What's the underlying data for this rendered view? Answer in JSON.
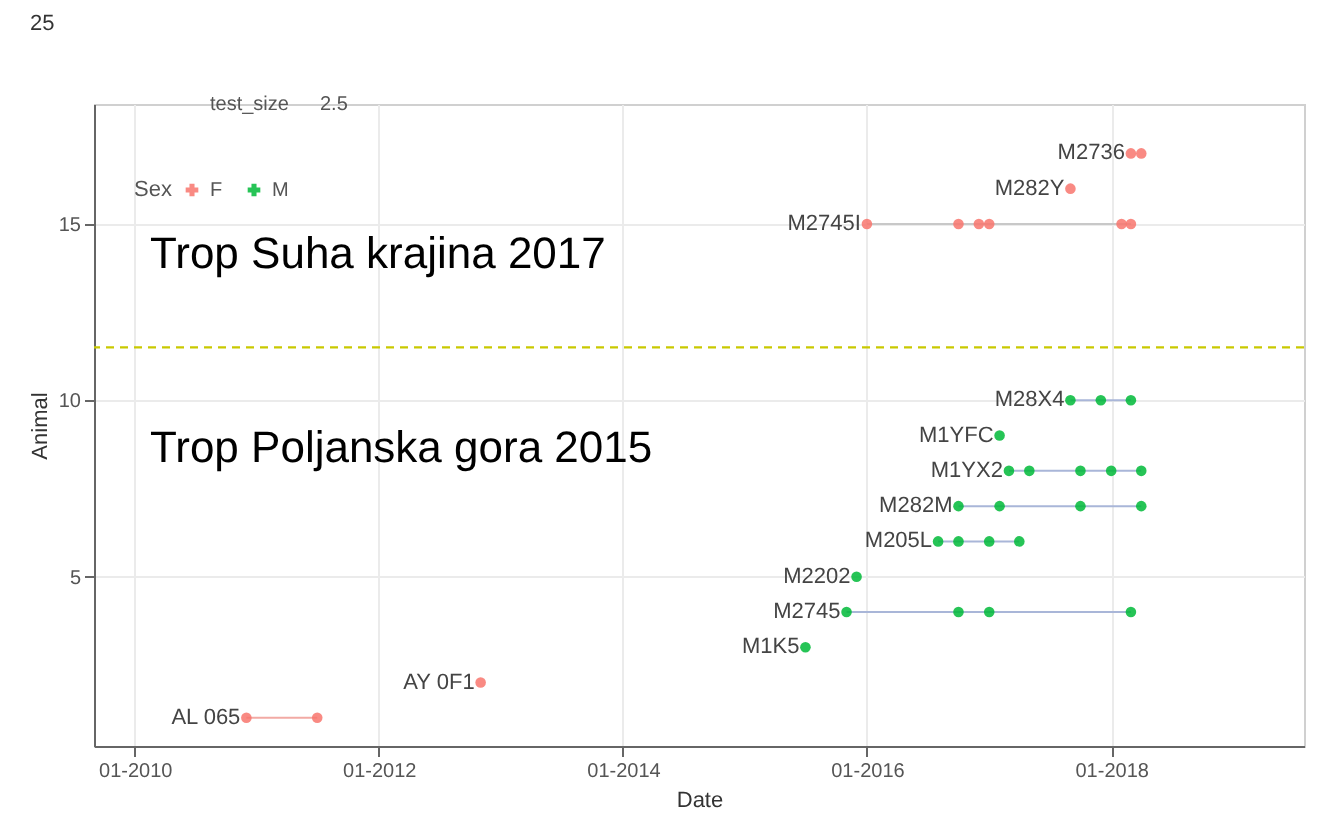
{
  "chart_data": {
    "type": "line",
    "xlabel": "Date",
    "ylabel": "Animal",
    "legend_title": "Sex",
    "legend": "top left",
    "grid": true,
    "xlim": [
      "2009-09",
      "2019-08"
    ],
    "xticks": [
      {
        "value": "2010-01",
        "label": "01-2010"
      },
      {
        "value": "2012-01",
        "label": "01-2012"
      },
      {
        "value": "2014-01",
        "label": "01-2014"
      },
      {
        "value": "2016-01",
        "label": "01-2016"
      },
      {
        "value": "2018-01",
        "label": "01-2018"
      }
    ],
    "ylim": [
      0.2,
      18.4
    ],
    "yticks": [
      5,
      10,
      15
    ],
    "ref_lines": [
      {
        "axis": "y",
        "value": 11.5,
        "color": "#c9c900",
        "line_style": "dashed"
      }
    ],
    "series": [
      {
        "type": "line",
        "color": "#f2aaa4",
        "x": [
          "2010-12",
          "2011-07"
        ],
        "values": [
          1,
          1
        ]
      },
      {
        "type": "line",
        "color": "#a9b6d8",
        "x": [
          "2015-11",
          "2016-10",
          "2017-01",
          "2018-03"
        ],
        "values": [
          4,
          4,
          4,
          4
        ]
      },
      {
        "type": "line",
        "color": "#a9b6d8",
        "x": [
          "2016-08",
          "2016-10",
          "2017-01",
          "2017-04"
        ],
        "values": [
          6,
          6,
          6,
          6
        ]
      },
      {
        "type": "line",
        "color": "#a9b6d8",
        "x": [
          "2016-10",
          "2017-02",
          "2017-10",
          "2018-04"
        ],
        "values": [
          7,
          7,
          7,
          7
        ]
      },
      {
        "type": "line",
        "color": "#a9b6d8",
        "x": [
          "2017-03",
          "2017-05",
          "2017-10",
          "2018-01",
          "2018-04"
        ],
        "values": [
          8,
          8,
          8,
          8,
          8
        ]
      },
      {
        "type": "line",
        "color": "#a9b6d8",
        "x": [
          "2017-09",
          "2017-12",
          "2018-03"
        ],
        "values": [
          10,
          10,
          10
        ]
      },
      {
        "type": "line",
        "color": "#c8c8c8",
        "x": [
          "2016-01",
          "2016-10",
          "2016-12",
          "2017-01",
          "2018-02",
          "2018-03"
        ],
        "values": [
          15,
          15,
          15,
          15,
          15,
          15
        ]
      },
      {
        "type": "scatter",
        "name": "F",
        "color": "#f8766d",
        "x": [
          "2010-12",
          "2011-07",
          "2012-11",
          "2016-01",
          "2016-10",
          "2016-12",
          "2017-01",
          "2018-02",
          "2018-03",
          "2017-09",
          "2018-03",
          "2018-04"
        ],
        "values": [
          1,
          1,
          2,
          15,
          15,
          15,
          15,
          15,
          15,
          16,
          17,
          17
        ]
      },
      {
        "type": "scatter",
        "name": "M",
        "color": "#00ba38",
        "x": [
          "2015-07",
          "2015-11",
          "2016-10",
          "2017-01",
          "2018-03",
          "2015-12",
          "2016-08",
          "2016-10",
          "2017-01",
          "2017-04",
          "2016-10",
          "2017-02",
          "2017-10",
          "2018-04",
          "2017-03",
          "2017-05",
          "2017-10",
          "2018-01",
          "2018-04",
          "2017-02",
          "2017-09",
          "2017-12",
          "2018-03"
        ],
        "values": [
          3,
          4,
          4,
          4,
          4,
          5,
          6,
          6,
          6,
          6,
          7,
          7,
          7,
          7,
          8,
          8,
          8,
          8,
          8,
          9,
          10,
          10,
          10
        ]
      }
    ],
    "annotations": [
      "25",
      "test_size",
      "2.5",
      "Trop Suha krajina 2017",
      "Trop Poljanska gora 2015",
      {
        "text": "AL 065",
        "x": "2010-12",
        "y": 1
      },
      {
        "text": "AY 0F1",
        "x": "2012-11",
        "y": 2
      },
      {
        "text": "M1K5",
        "x": "2015-07",
        "y": 3
      },
      {
        "text": "M2745",
        "x": "2015-11",
        "y": 4
      },
      {
        "text": "M2202",
        "x": "2015-12",
        "y": 5
      },
      {
        "text": "M205L",
        "x": "2016-08",
        "y": 6
      },
      {
        "text": "M282M",
        "x": "2016-10",
        "y": 7
      },
      {
        "text": "M1YX2",
        "x": "2017-03",
        "y": 8
      },
      {
        "text": "M1YFC",
        "x": "2017-02",
        "y": 9
      },
      {
        "text": "M28X4",
        "x": "2017-09",
        "y": 10
      },
      {
        "text": "M2745I",
        "x": "2016-01",
        "y": 15
      },
      {
        "text": "M282Y",
        "x": "2017-09",
        "y": 16
      },
      {
        "text": "M2736",
        "x": "2018-03",
        "y": 17
      }
    ]
  }
}
